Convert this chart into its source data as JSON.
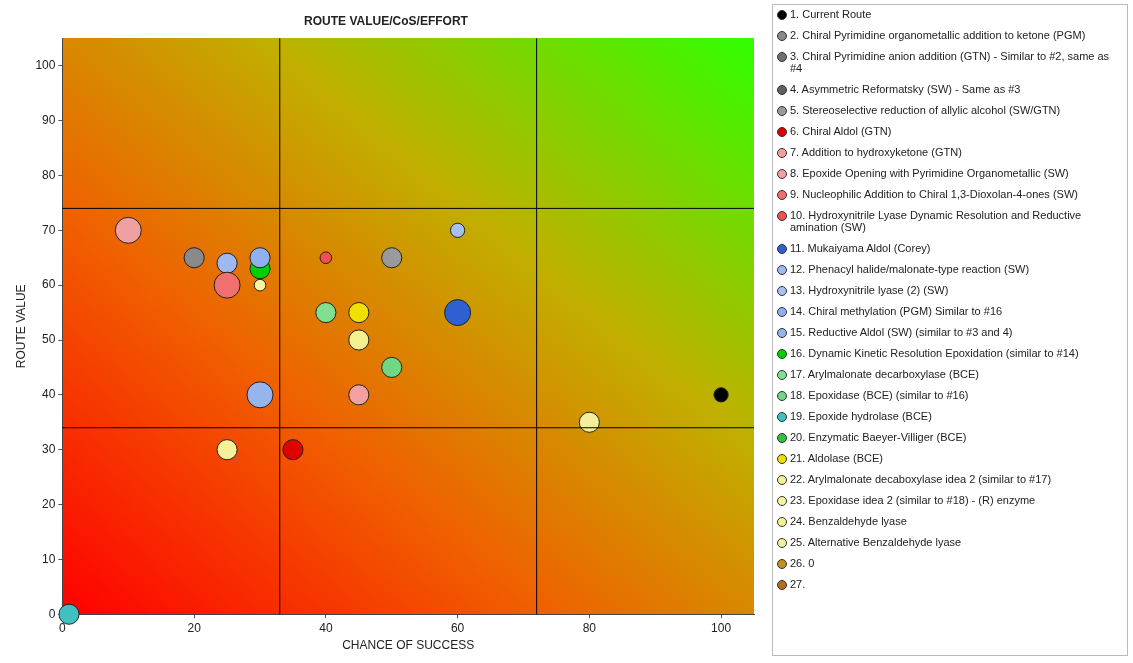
{
  "chart_data": {
    "type": "bubble",
    "title": "ROUTE VALUE/CoS/EFFORT",
    "xlabel": "CHANCE OF SUCCESS",
    "ylabel": "ROUTE VALUE",
    "xlim": [
      0,
      105
    ],
    "ylim": [
      0,
      105
    ],
    "xticks": [
      0,
      20,
      40,
      60,
      80,
      100
    ],
    "yticks": [
      0,
      10,
      20,
      30,
      40,
      50,
      60,
      70,
      80,
      90,
      100
    ],
    "grid": false,
    "legend": "right",
    "marker": "circle",
    "ref_lines": [
      {
        "axis": "x",
        "value": 33,
        "color": "#000000"
      },
      {
        "axis": "x",
        "value": 72,
        "color": "#000000"
      },
      {
        "axis": "y",
        "value": 74,
        "color": "#000000"
      },
      {
        "axis": "y",
        "value": 34,
        "color": "#000000"
      }
    ],
    "series": [
      {
        "name": "1. Current Route",
        "color": "#000000",
        "x": [
          100
        ],
        "values": [
          40
        ],
        "sizes": [
          0.3
        ]
      },
      {
        "name": "2. Chiral Pyrimidine organometallic addition to ketone (PGM)",
        "color": "#8a8a8a",
        "x": [
          20
        ],
        "values": [
          65
        ],
        "sizes": [
          0.6
        ]
      },
      {
        "name": "3. Chiral Pyrimidine anion addition (GTN) - Similar to #2, same as #4",
        "color": "#707070",
        "x": [
          null
        ],
        "values": [
          null
        ],
        "sizes": [
          null
        ]
      },
      {
        "name": "4. Asymmetric Reformatsky (SW) - Same as #3",
        "color": "#606060",
        "x": [
          null
        ],
        "values": [
          null
        ],
        "sizes": [
          null
        ]
      },
      {
        "name": "5. Stereoselective reduction of allylic alcohol (SW/GTN)",
        "color": "#9a9a9a",
        "x": [
          50
        ],
        "values": [
          65
        ],
        "sizes": [
          0.6
        ]
      },
      {
        "name": "6. Chiral Aldol (GTN)",
        "color": "#e00000",
        "x": [
          35
        ],
        "values": [
          30
        ],
        "sizes": [
          0.6
        ]
      },
      {
        "name": "7. Addition to hydroxyketone (GTN)",
        "color": "#f0a0a0",
        "x": [
          10
        ],
        "values": [
          70
        ],
        "sizes": [
          1
        ]
      },
      {
        "name": "8. Epoxide Opening with Pyrimidine Organometallic (SW)",
        "color": "#f4a0a0",
        "x": [
          45
        ],
        "values": [
          40
        ],
        "sizes": [
          0.6
        ]
      },
      {
        "name": "9. Nucleophilic Addition to Chiral 1,3-Dioxolan-4-ones (SW)",
        "color": "#f07070",
        "x": [
          25
        ],
        "values": [
          60
        ],
        "sizes": [
          1
        ]
      },
      {
        "name": "10. Hydroxynitrile Lyase Dynamic Resolution and Reductive amination (SW)",
        "color": "#f05050",
        "x": [
          40
        ],
        "values": [
          65
        ],
        "sizes": [
          0.2
        ]
      },
      {
        "name": "11. Mukaiyama Aldol (Corey)",
        "color": "#2f60d0",
        "x": [
          60
        ],
        "values": [
          55
        ],
        "sizes": [
          1
        ]
      },
      {
        "name": "12. Phenacyl halide/malonate-type reaction (SW)",
        "color": "#a0b8f0",
        "x": [
          25
        ],
        "values": [
          64
        ],
        "sizes": [
          0.6
        ]
      },
      {
        "name": "13. Hydroxynitrile lyase (2) (SW)",
        "color": "#a8c0f0",
        "x": [
          60
        ],
        "values": [
          70
        ],
        "sizes": [
          0.3
        ]
      },
      {
        "name": "14. Chiral methylation (PGM) Similar to #16",
        "color": "#90b0f0",
        "x": [
          30
        ],
        "values": [
          65
        ],
        "sizes": [
          0.6
        ]
      },
      {
        "name": "15. Reductive Aldol (SW) (similar to #3 and 4)",
        "color": "#98b4ec",
        "x": [
          30
        ],
        "values": [
          40
        ],
        "sizes": [
          1
        ]
      },
      {
        "name": "16. Dynamic Kinetic Resolution Epoxidation (similar to #14)",
        "color": "#00d000",
        "x": [
          30
        ],
        "values": [
          63
        ],
        "sizes": [
          0.6
        ]
      },
      {
        "name": "17. Arylmalonate decarboxylase (BCE)",
        "color": "#80e090",
        "x": [
          40
        ],
        "values": [
          55
        ],
        "sizes": [
          0.6
        ]
      },
      {
        "name": "18. Epoxidase (BCE) (similar to #16)",
        "color": "#70d880",
        "x": [
          50
        ],
        "values": [
          45
        ],
        "sizes": [
          0.6
        ]
      },
      {
        "name": "19. Epoxide hydrolase (BCE)",
        "color": "#40c0c0",
        "x": [
          1
        ],
        "values": [
          0
        ],
        "sizes": [
          0.6
        ]
      },
      {
        "name": "20. Enzymatic Baeyer-Villiger (BCE)",
        "color": "#30c040",
        "x": [
          null
        ],
        "values": [
          null
        ],
        "sizes": [
          null
        ]
      },
      {
        "name": "21. Aldolase (BCE)",
        "color": "#f0e000",
        "x": [
          45
        ],
        "values": [
          55
        ],
        "sizes": [
          0.6
        ]
      },
      {
        "name": "22. Arylmalonate decaboxylase idea 2 (similar to #17)",
        "color": "#f4f090",
        "x": [
          45
        ],
        "values": [
          50
        ],
        "sizes": [
          0.6
        ]
      },
      {
        "name": "23. Epoxidase idea 2 (similar to #18) - (R) enzyme",
        "color": "#f8f4a0",
        "x": [
          30
        ],
        "values": [
          60
        ],
        "sizes": [
          0.2
        ]
      },
      {
        "name": "24. Benzaldehyde lyase",
        "color": "#f6f098",
        "x": [
          25
        ],
        "values": [
          30
        ],
        "sizes": [
          0.6
        ]
      },
      {
        "name": "25. Alternative Benzaldehyde lyase",
        "color": "#f4ee9c",
        "x": [
          80
        ],
        "values": [
          35
        ],
        "sizes": [
          0.6
        ]
      },
      {
        "name": "26. 0",
        "color": "#c09020",
        "x": [
          null
        ],
        "values": [
          null
        ],
        "sizes": [
          null
        ]
      },
      {
        "name": "27.",
        "color": "#b07020",
        "x": [
          null
        ],
        "values": [
          null
        ],
        "sizes": [
          null
        ]
      }
    ]
  }
}
